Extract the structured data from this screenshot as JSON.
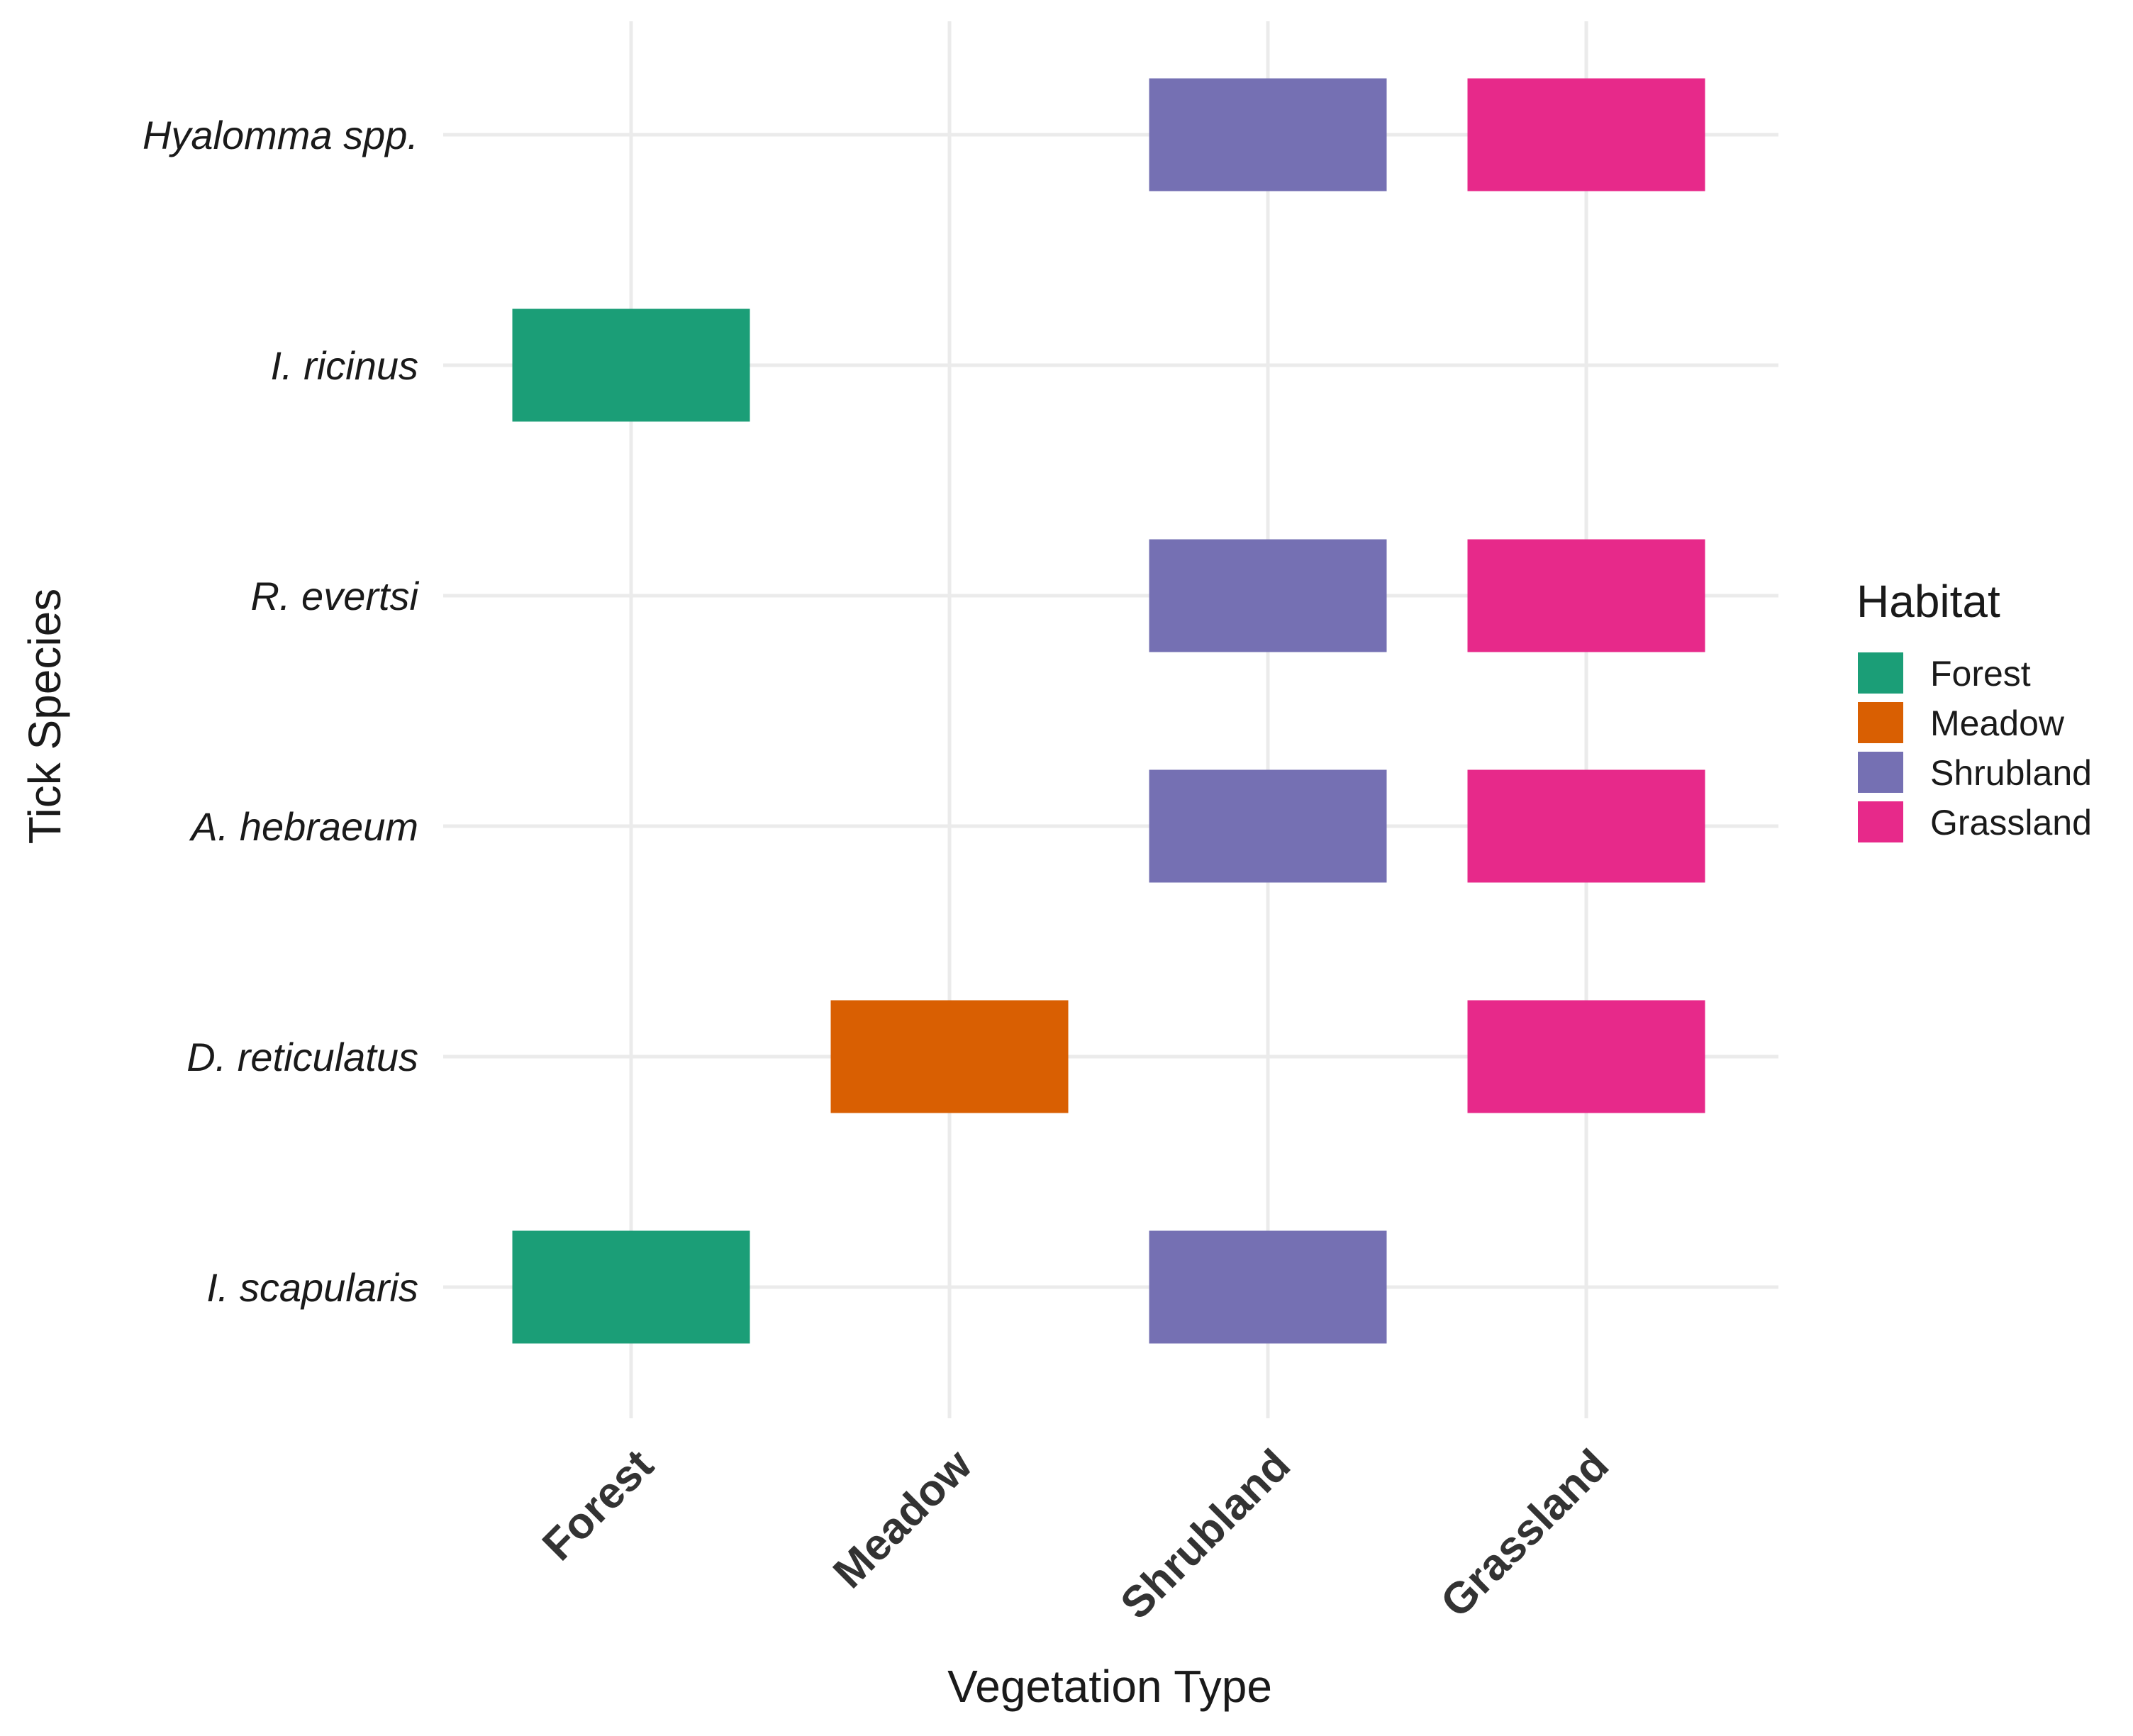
{
  "chart_data": {
    "type": "heatmap",
    "title": "",
    "xlabel": "Vegetation Type",
    "ylabel": "Tick Species",
    "x_categories": [
      "Forest",
      "Meadow",
      "Shrubland",
      "Grassland"
    ],
    "y_categories": [
      "I. scapularis",
      "D. reticulatus",
      "A. hebraeum",
      "R. evertsi",
      "I. ricinus",
      "Hyalomma spp."
    ],
    "legend": {
      "title": "Habitat",
      "placement": "right",
      "entries": [
        {
          "label": "Forest",
          "color": "#1b9e77"
        },
        {
          "label": "Meadow",
          "color": "#d95f02"
        },
        {
          "label": "Shrubland",
          "color": "#7570b3"
        },
        {
          "label": "Grassland",
          "color": "#e7298a"
        }
      ]
    },
    "cells": [
      {
        "species": "Hyalomma spp.",
        "vegetation": "Shrubland",
        "habitat": "Shrubland"
      },
      {
        "species": "Hyalomma spp.",
        "vegetation": "Grassland",
        "habitat": "Grassland"
      },
      {
        "species": "I. ricinus",
        "vegetation": "Forest",
        "habitat": "Forest"
      },
      {
        "species": "R. evertsi",
        "vegetation": "Shrubland",
        "habitat": "Shrubland"
      },
      {
        "species": "R. evertsi",
        "vegetation": "Grassland",
        "habitat": "Grassland"
      },
      {
        "species": "A. hebraeum",
        "vegetation": "Shrubland",
        "habitat": "Shrubland"
      },
      {
        "species": "A. hebraeum",
        "vegetation": "Grassland",
        "habitat": "Grassland"
      },
      {
        "species": "D. reticulatus",
        "vegetation": "Meadow",
        "habitat": "Meadow"
      },
      {
        "species": "D. reticulatus",
        "vegetation": "Grassland",
        "habitat": "Grassland"
      },
      {
        "species": "I. scapularis",
        "vegetation": "Forest",
        "habitat": "Forest"
      },
      {
        "species": "I. scapularis",
        "vegetation": "Shrubland",
        "habitat": "Shrubland"
      }
    ],
    "grid": true
  }
}
